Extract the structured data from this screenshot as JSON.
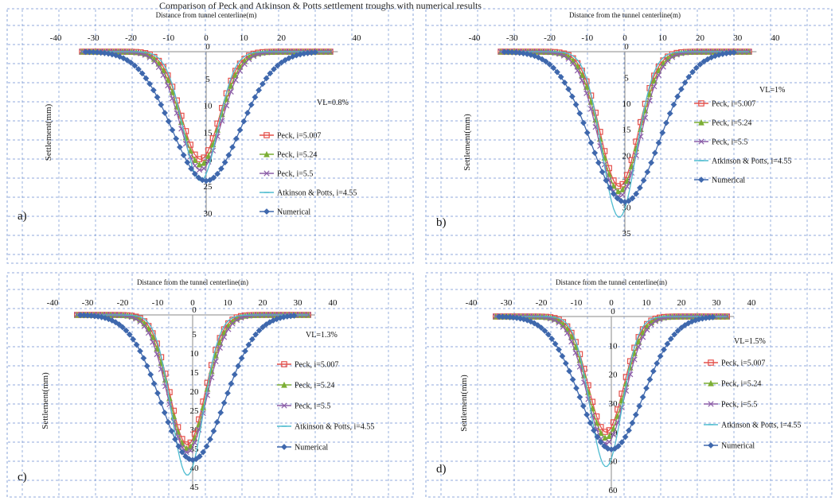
{
  "caption_fragment": "Comparison of Peck and Atkinson & Potts settlement troughs with numerical results",
  "chart_data": [
    {
      "type": "line",
      "panel_label": "a)",
      "title": "Distance from tunnel centerline(m)",
      "ylabel": "Settlement(mm)",
      "annotation": "VL=0.8%",
      "xlim": [
        -40,
        40
      ],
      "ylim": [
        0,
        30
      ],
      "x_ticks": [
        "-40",
        "-30",
        "-20",
        "-10",
        "0",
        "10",
        "20",
        "40"
      ],
      "y_ticks": [
        "0",
        "5",
        "10",
        "15",
        "20",
        "25",
        "30"
      ],
      "legend_position": "right",
      "series": [
        {
          "name": "Peck, i=5.007",
          "color": "#e4504b",
          "marker": "square",
          "max": 20
        },
        {
          "name": "Peck, i=5.24",
          "color": "#7cae35",
          "marker": "triangle",
          "max": 21
        },
        {
          "name": "Peck, i=5.5",
          "color": "#8c5fa8",
          "marker": "cross",
          "max": 22
        },
        {
          "name": "Atkinson & Potts, i=4.55",
          "color": "#4fbcd0",
          "marker": "line",
          "max": 24
        },
        {
          "name": "Numerical",
          "color": "#3f68ad",
          "marker": "diamond",
          "max": 24
        }
      ]
    },
    {
      "type": "line",
      "panel_label": "b)",
      "title": "Distance from the tunnel centerline(m)",
      "ylabel": "Settlement(mm)",
      "annotation": "VL=1%",
      "xlim": [
        -40,
        40
      ],
      "ylim": [
        0,
        35
      ],
      "x_ticks": [
        "-40",
        "-30",
        "-20",
        "-10",
        "0",
        "10",
        "20",
        "30",
        "40"
      ],
      "y_ticks": [
        "0",
        "5",
        "10",
        "15",
        "20",
        "25",
        "30",
        "35"
      ],
      "legend_position": "right",
      "series": [
        {
          "name": "Peck, i=5.007",
          "color": "#e4504b",
          "marker": "square",
          "max": 26
        },
        {
          "name": "Peck, i=5.24",
          "color": "#7cae35",
          "marker": "triangle",
          "max": 27
        },
        {
          "name": "Peck, i=5.5",
          "color": "#8c5fa8",
          "marker": "cross",
          "max": 28
        },
        {
          "name": "Atkinson & Potts, i=4.55",
          "color": "#4fbcd0",
          "marker": "line",
          "max": 32
        },
        {
          "name": "Numerical",
          "color": "#3f68ad",
          "marker": "diamond",
          "max": 29
        }
      ]
    },
    {
      "type": "line",
      "panel_label": "c)",
      "title": "Distance from the tunnel centerline(m)",
      "ylabel": "Settlement(mm)",
      "annotation": "VL=1.3%",
      "xlim": [
        -40,
        40
      ],
      "ylim": [
        0,
        45
      ],
      "x_ticks": [
        "-40",
        "-30",
        "-20",
        "-10",
        "0",
        "10",
        "20",
        "30",
        "40"
      ],
      "y_ticks": [
        "0",
        "5",
        "10",
        "15",
        "20",
        "25",
        "30",
        "35",
        "40",
        "45"
      ],
      "legend_position": "right",
      "series": [
        {
          "name": "Peck, i=5.007",
          "color": "#e4504b",
          "marker": "square",
          "max": 34
        },
        {
          "name": "Peck, i=5.24",
          "color": "#7cae35",
          "marker": "triangle",
          "max": 35
        },
        {
          "name": "Peck, i=5.5",
          "color": "#8c5fa8",
          "marker": "cross",
          "max": 36
        },
        {
          "name": "Atkinson & Potts, i=4.55",
          "color": "#4fbcd0",
          "marker": "line",
          "max": 42
        },
        {
          "name": "Numerical",
          "color": "#3f68ad",
          "marker": "diamond",
          "max": 38
        }
      ]
    },
    {
      "type": "line",
      "panel_label": "d)",
      "title": "Distance from the tunnel centerline(m)",
      "ylabel": "Settlement(mm)",
      "annotation": "VL=1.5%",
      "xlim": [
        -40,
        40
      ],
      "ylim": [
        0,
        60
      ],
      "x_ticks": [
        "-40",
        "-30",
        "-20",
        "-10",
        "0",
        "10",
        "20",
        "30",
        "40"
      ],
      "y_ticks": [
        "0",
        "10",
        "20",
        "30",
        "40",
        "50",
        "60"
      ],
      "legend_position": "right",
      "series": [
        {
          "name": "Peck, i=5.007",
          "color": "#e4504b",
          "marker": "square",
          "max": 40
        },
        {
          "name": "Peck, i=5.24",
          "color": "#7cae35",
          "marker": "triangle",
          "max": 42
        },
        {
          "name": "Peck, i=5.5",
          "color": "#8c5fa8",
          "marker": "cross",
          "max": 44
        },
        {
          "name": "Atkinson & Potts, i=4.55",
          "color": "#4fbcd0",
          "marker": "line",
          "max": 52
        },
        {
          "name": "Numerical",
          "color": "#3f68ad",
          "marker": "diamond",
          "max": 46
        }
      ]
    }
  ]
}
